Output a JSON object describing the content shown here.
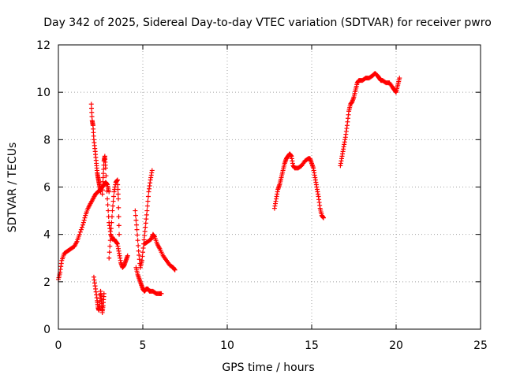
{
  "chart_data": {
    "type": "scatter",
    "title": "Day 342 of 2025, Sidereal Day-to-day VTEC variation (SDTVAR) for receiver pwro",
    "xlabel": "GPS time / hours",
    "ylabel": "SDTVAR / TECUs",
    "xlim": [
      0,
      25
    ],
    "ylim": [
      0,
      12
    ],
    "xticks": [
      0,
      5,
      10,
      15,
      20,
      25
    ],
    "yticks": [
      0,
      2,
      4,
      6,
      8,
      10,
      12
    ],
    "grid": true,
    "marker": "+",
    "series": [
      {
        "name": "SDTVAR",
        "color": "#ff0000",
        "segments": [
          [
            [
              0.0,
              2.1
            ],
            [
              0.1,
              2.4
            ],
            [
              0.2,
              2.9
            ],
            [
              0.35,
              3.2
            ],
            [
              0.55,
              3.3
            ],
            [
              0.75,
              3.4
            ],
            [
              0.95,
              3.5
            ],
            [
              1.1,
              3.7
            ],
            [
              1.25,
              4.0
            ],
            [
              1.45,
              4.4
            ],
            [
              1.6,
              4.8
            ],
            [
              1.75,
              5.1
            ],
            [
              1.9,
              5.3
            ],
            [
              2.05,
              5.5
            ],
            [
              2.2,
              5.7
            ],
            [
              2.35,
              5.8
            ],
            [
              2.5,
              5.9
            ],
            [
              2.6,
              6.0
            ],
            [
              2.7,
              6.1
            ],
            [
              2.8,
              6.2
            ],
            [
              2.9,
              6.1
            ],
            [
              3.0,
              5.8
            ]
          ],
          [
            [
              1.95,
              9.5
            ],
            [
              2.0,
              8.8
            ],
            [
              2.05,
              8.6
            ],
            [
              2.1,
              8.0
            ],
            [
              2.18,
              7.5
            ],
            [
              2.25,
              7.0
            ],
            [
              2.3,
              6.6
            ],
            [
              2.35,
              6.4
            ],
            [
              2.4,
              6.2
            ],
            [
              2.45,
              6.0
            ],
            [
              2.5,
              5.8
            ]
          ],
          [
            [
              2.6,
              5.7
            ],
            [
              2.65,
              6.4
            ],
            [
              2.7,
              7.1
            ],
            [
              2.75,
              7.3
            ],
            [
              2.8,
              6.8
            ],
            [
              2.9,
              5.5
            ],
            [
              3.0,
              4.5
            ],
            [
              3.1,
              4.0
            ],
            [
              3.2,
              3.8
            ],
            [
              3.3,
              3.8
            ],
            [
              3.4,
              3.7
            ],
            [
              3.5,
              3.6
            ],
            [
              3.6,
              3.2
            ],
            [
              3.7,
              2.8
            ],
            [
              3.8,
              2.6
            ],
            [
              3.9,
              2.7
            ],
            [
              4.0,
              2.9
            ],
            [
              4.1,
              3.1
            ]
          ],
          [
            [
              3.0,
              3.0
            ],
            [
              3.1,
              4.0
            ],
            [
              3.2,
              5.0
            ],
            [
              3.3,
              5.8
            ],
            [
              3.4,
              6.2
            ],
            [
              3.5,
              6.3
            ],
            [
              3.55,
              5.5
            ],
            [
              3.6,
              4.0
            ]
          ],
          [
            [
              2.1,
              2.2
            ],
            [
              2.2,
              1.7
            ],
            [
              2.3,
              1.2
            ],
            [
              2.35,
              0.9
            ],
            [
              2.4,
              0.8
            ],
            [
              2.45,
              1.0
            ],
            [
              2.5,
              1.6
            ],
            [
              2.55,
              1.2
            ],
            [
              2.6,
              0.7
            ],
            [
              2.65,
              1.0
            ],
            [
              2.7,
              1.5
            ]
          ],
          [
            [
              4.6,
              2.6
            ],
            [
              4.7,
              2.3
            ],
            [
              4.8,
              2.1
            ],
            [
              4.9,
              1.9
            ],
            [
              5.0,
              1.7
            ],
            [
              5.1,
              1.6
            ],
            [
              5.2,
              1.7
            ],
            [
              5.3,
              1.7
            ],
            [
              5.4,
              1.6
            ],
            [
              5.6,
              1.6
            ],
            [
              5.8,
              1.5
            ],
            [
              6.0,
              1.5
            ],
            [
              6.1,
              1.5
            ]
          ],
          [
            [
              4.55,
              5.0
            ],
            [
              4.65,
              4.2
            ],
            [
              4.75,
              3.3
            ],
            [
              4.85,
              2.6
            ],
            [
              4.95,
              2.9
            ],
            [
              5.05,
              3.6
            ],
            [
              5.15,
              4.3
            ],
            [
              5.25,
              5.0
            ],
            [
              5.35,
              5.8
            ],
            [
              5.45,
              6.3
            ],
            [
              5.55,
              6.7
            ]
          ],
          [
            [
              5.1,
              3.6
            ],
            [
              5.3,
              3.7
            ],
            [
              5.5,
              3.8
            ],
            [
              5.6,
              4.0
            ],
            [
              5.7,
              3.9
            ],
            [
              5.85,
              3.6
            ],
            [
              6.0,
              3.4
            ],
            [
              6.2,
              3.1
            ],
            [
              6.4,
              2.9
            ],
            [
              6.6,
              2.7
            ],
            [
              6.8,
              2.6
            ],
            [
              6.9,
              2.5
            ]
          ],
          [
            [
              12.8,
              5.1
            ],
            [
              12.9,
              5.5
            ],
            [
              13.0,
              5.9
            ],
            [
              13.1,
              6.1
            ],
            [
              13.2,
              6.4
            ],
            [
              13.3,
              6.7
            ],
            [
              13.4,
              7.0
            ],
            [
              13.5,
              7.2
            ],
            [
              13.6,
              7.3
            ],
            [
              13.7,
              7.4
            ],
            [
              13.8,
              7.3
            ],
            [
              13.9,
              6.9
            ],
            [
              14.0,
              6.8
            ],
            [
              14.2,
              6.8
            ],
            [
              14.4,
              6.9
            ],
            [
              14.6,
              7.1
            ],
            [
              14.8,
              7.2
            ],
            [
              14.9,
              7.2
            ],
            [
              15.0,
              7.0
            ],
            [
              15.1,
              6.8
            ],
            [
              15.2,
              6.4
            ],
            [
              15.3,
              6.0
            ],
            [
              15.4,
              5.6
            ],
            [
              15.5,
              5.1
            ],
            [
              15.6,
              4.8
            ],
            [
              15.7,
              4.7
            ]
          ],
          [
            [
              16.7,
              6.9
            ],
            [
              16.8,
              7.3
            ],
            [
              16.9,
              7.7
            ],
            [
              17.0,
              8.1
            ],
            [
              17.1,
              8.6
            ],
            [
              17.2,
              9.2
            ],
            [
              17.3,
              9.5
            ],
            [
              17.4,
              9.6
            ],
            [
              17.5,
              9.8
            ],
            [
              17.6,
              10.1
            ],
            [
              17.7,
              10.4
            ],
            [
              17.8,
              10.5
            ],
            [
              18.0,
              10.5
            ],
            [
              18.2,
              10.6
            ],
            [
              18.4,
              10.6
            ],
            [
              18.6,
              10.7
            ],
            [
              18.75,
              10.8
            ],
            [
              18.9,
              10.7
            ],
            [
              19.0,
              10.6
            ],
            [
              19.1,
              10.5
            ],
            [
              19.2,
              10.5
            ],
            [
              19.4,
              10.4
            ],
            [
              19.6,
              10.4
            ],
            [
              19.8,
              10.2
            ],
            [
              19.9,
              10.1
            ],
            [
              20.0,
              10.0
            ],
            [
              20.1,
              10.3
            ],
            [
              20.2,
              10.6
            ]
          ]
        ]
      }
    ]
  }
}
